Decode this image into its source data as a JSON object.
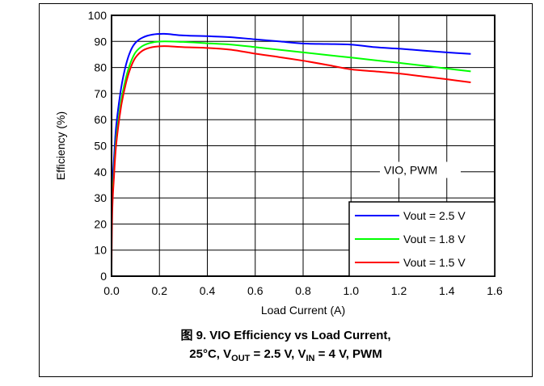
{
  "chart_data": {
    "type": "line",
    "xlabel": "Load Current (A)",
    "ylabel": "Efficiency (%)",
    "xlim": [
      0,
      1.6
    ],
    "ylim": [
      0,
      100
    ],
    "xticks": [
      "0.0",
      "0.2",
      "0.4",
      "0.6",
      "0.8",
      "1.0",
      "1.2",
      "1.4",
      "1.6"
    ],
    "yticks": [
      "0",
      "10",
      "20",
      "30",
      "40",
      "50",
      "60",
      "70",
      "80",
      "90",
      "100"
    ],
    "grid": true,
    "annotation": "VIO, PWM",
    "legend_position": "bottom-right",
    "series": [
      {
        "name": "Vout = 2.5 V",
        "color": "#0000ff",
        "points": [
          [
            0.0,
            30
          ],
          [
            0.01,
            45
          ],
          [
            0.02,
            58
          ],
          [
            0.04,
            72
          ],
          [
            0.06,
            81
          ],
          [
            0.08,
            86.5
          ],
          [
            0.1,
            89.5
          ],
          [
            0.13,
            91.5
          ],
          [
            0.17,
            92.6
          ],
          [
            0.22,
            92.9
          ],
          [
            0.3,
            92.3
          ],
          [
            0.4,
            92.0
          ],
          [
            0.5,
            91.6
          ],
          [
            0.6,
            90.8
          ],
          [
            0.7,
            90.0
          ],
          [
            0.8,
            89.2
          ],
          [
            0.9,
            89.0
          ],
          [
            1.0,
            88.8
          ],
          [
            1.1,
            87.8
          ],
          [
            1.2,
            87.2
          ],
          [
            1.3,
            86.5
          ],
          [
            1.4,
            85.8
          ],
          [
            1.5,
            85.2
          ]
        ]
      },
      {
        "name": "Vout = 1.8 V",
        "color": "#00ff00",
        "points": [
          [
            0.0,
            25
          ],
          [
            0.01,
            40
          ],
          [
            0.02,
            53
          ],
          [
            0.04,
            67
          ],
          [
            0.06,
            76
          ],
          [
            0.08,
            82
          ],
          [
            0.1,
            85.8
          ],
          [
            0.13,
            88.3
          ],
          [
            0.17,
            89.6
          ],
          [
            0.22,
            90.0
          ],
          [
            0.3,
            89.8
          ],
          [
            0.4,
            89.3
          ],
          [
            0.5,
            88.8
          ],
          [
            0.6,
            87.8
          ],
          [
            0.7,
            86.8
          ],
          [
            0.8,
            85.8
          ],
          [
            0.9,
            84.8
          ],
          [
            1.0,
            83.8
          ],
          [
            1.1,
            82.8
          ],
          [
            1.2,
            81.8
          ],
          [
            1.3,
            80.7
          ],
          [
            1.4,
            79.6
          ],
          [
            1.5,
            78.5
          ]
        ]
      },
      {
        "name": "Vout = 1.5 V",
        "color": "#ff0000",
        "points": [
          [
            0.0,
            3
          ],
          [
            0.003,
            25
          ],
          [
            0.01,
            38
          ],
          [
            0.02,
            51
          ],
          [
            0.04,
            65
          ],
          [
            0.06,
            74
          ],
          [
            0.08,
            80
          ],
          [
            0.1,
            83.8
          ],
          [
            0.13,
            86.5
          ],
          [
            0.17,
            87.8
          ],
          [
            0.22,
            88.2
          ],
          [
            0.3,
            87.8
          ],
          [
            0.4,
            87.5
          ],
          [
            0.5,
            86.8
          ],
          [
            0.6,
            85.3
          ],
          [
            0.7,
            84.0
          ],
          [
            0.8,
            82.6
          ],
          [
            0.9,
            81.0
          ],
          [
            1.0,
            79.3
          ],
          [
            1.1,
            78.5
          ],
          [
            1.2,
            77.7
          ],
          [
            1.3,
            76.6
          ],
          [
            1.4,
            75.5
          ],
          [
            1.5,
            74.3
          ]
        ]
      }
    ]
  },
  "caption": {
    "line1": "图 9. VIO Efficiency vs Load Current,",
    "line2_prefix": "25°C, V",
    "line2_sub1": "OUT",
    "line2_mid": " = 2.5 V, V",
    "line2_sub2": "IN",
    "line2_suffix": " = 4 V, PWM"
  }
}
